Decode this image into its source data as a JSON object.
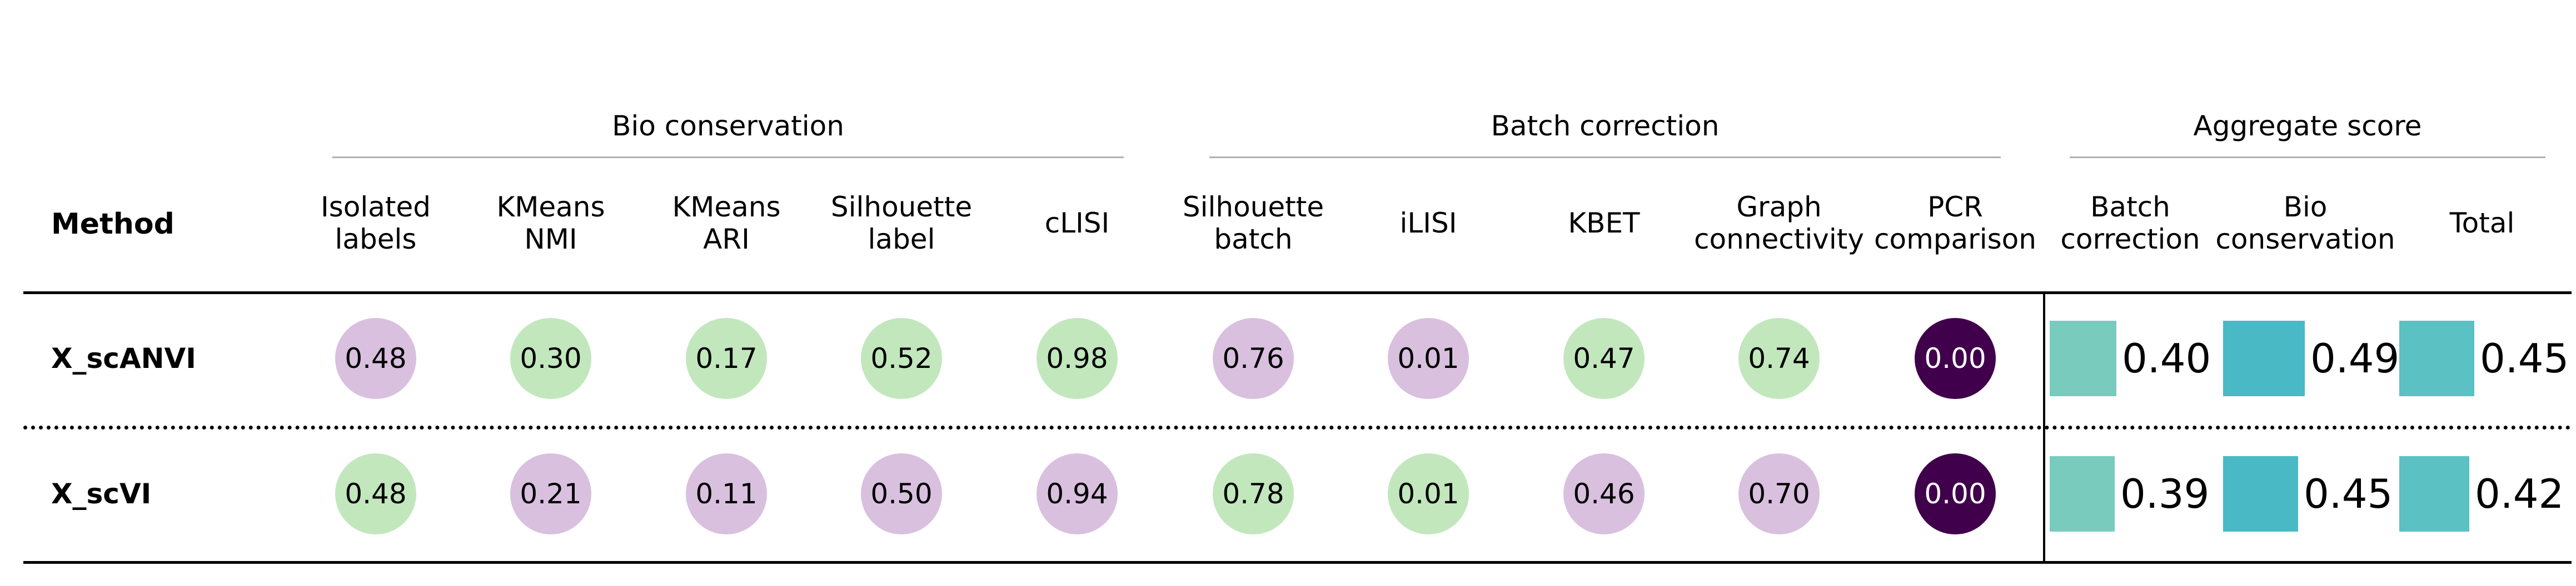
{
  "chart_data": {
    "type": "table",
    "method_header": "Method",
    "groups": [
      {
        "name": "Bio conservation",
        "columns": [
          "isolated_labels",
          "kmeans_nmi",
          "kmeans_ari",
          "silhouette_label",
          "clisi"
        ]
      },
      {
        "name": "Batch correction",
        "columns": [
          "silhouette_batch",
          "ilisi",
          "kbet",
          "graph_connectivity",
          "pcr_comparison"
        ]
      },
      {
        "name": "Aggregate score",
        "columns": [
          "agg_batch",
          "agg_bio",
          "agg_total"
        ]
      }
    ],
    "columns": [
      {
        "key": "isolated_labels",
        "label": "Isolated\nlabels",
        "kind": "circle"
      },
      {
        "key": "kmeans_nmi",
        "label": "KMeans\nNMI",
        "kind": "circle"
      },
      {
        "key": "kmeans_ari",
        "label": "KMeans\nARI",
        "kind": "circle"
      },
      {
        "key": "silhouette_label",
        "label": "Silhouette\nlabel",
        "kind": "circle"
      },
      {
        "key": "clisi",
        "label": "cLISI",
        "kind": "circle"
      },
      {
        "key": "silhouette_batch",
        "label": "Silhouette\nbatch",
        "kind": "circle"
      },
      {
        "key": "ilisi",
        "label": "iLISI",
        "kind": "circle"
      },
      {
        "key": "kbet",
        "label": "KBET",
        "kind": "circle"
      },
      {
        "key": "graph_connectivity",
        "label": "Graph\nconnectivity",
        "kind": "circle"
      },
      {
        "key": "pcr_comparison",
        "label": "PCR\ncomparison",
        "kind": "circle"
      },
      {
        "key": "agg_batch",
        "label": "Batch\ncorrection",
        "kind": "bar"
      },
      {
        "key": "agg_bio",
        "label": "Bio\nconservation",
        "kind": "bar"
      },
      {
        "key": "agg_total",
        "label": "Total",
        "kind": "bar"
      }
    ],
    "rows": [
      {
        "name": "X_scANVI",
        "values": {
          "isolated_labels": "0.48",
          "kmeans_nmi": "0.30",
          "kmeans_ari": "0.17",
          "silhouette_label": "0.52",
          "clisi": "0.98",
          "silhouette_batch": "0.76",
          "ilisi": "0.01",
          "kbet": "0.47",
          "graph_connectivity": "0.74",
          "pcr_comparison": "0.00",
          "agg_batch": "0.40",
          "agg_bio": "0.49",
          "agg_total": "0.45"
        },
        "colors": {
          "isolated_labels": "#d9c0df",
          "kmeans_nmi": "#c2e7bd",
          "kmeans_ari": "#c2e7bd",
          "silhouette_label": "#c2e7bd",
          "clisi": "#c2e7bd",
          "silhouette_batch": "#d9c0df",
          "ilisi": "#d9c0df",
          "kbet": "#c2e7bd",
          "graph_connectivity": "#c2e7bd",
          "pcr_comparison": "#40004b",
          "agg_batch": "#79cbbd",
          "agg_bio": "#49b9c6",
          "agg_total": "#5bc1c2"
        },
        "text_colors": {
          "pcr_comparison": "#ffffff"
        }
      },
      {
        "name": "X_scVI",
        "values": {
          "isolated_labels": "0.48",
          "kmeans_nmi": "0.21",
          "kmeans_ari": "0.11",
          "silhouette_label": "0.50",
          "clisi": "0.94",
          "silhouette_batch": "0.78",
          "ilisi": "0.01",
          "kbet": "0.46",
          "graph_connectivity": "0.70",
          "pcr_comparison": "0.00",
          "agg_batch": "0.39",
          "agg_bio": "0.45",
          "agg_total": "0.42"
        },
        "colors": {
          "isolated_labels": "#c2e7bd",
          "kmeans_nmi": "#d9c0df",
          "kmeans_ari": "#d9c0df",
          "silhouette_label": "#d9c0df",
          "clisi": "#d9c0df",
          "silhouette_batch": "#c2e7bd",
          "ilisi": "#c2e7bd",
          "kbet": "#d9c0df",
          "graph_connectivity": "#d9c0df",
          "pcr_comparison": "#40004b",
          "agg_batch": "#79cbbd",
          "agg_bio": "#49b9c6",
          "agg_total": "#5bc1c2"
        },
        "text_colors": {
          "pcr_comparison": "#ffffff"
        }
      }
    ]
  }
}
